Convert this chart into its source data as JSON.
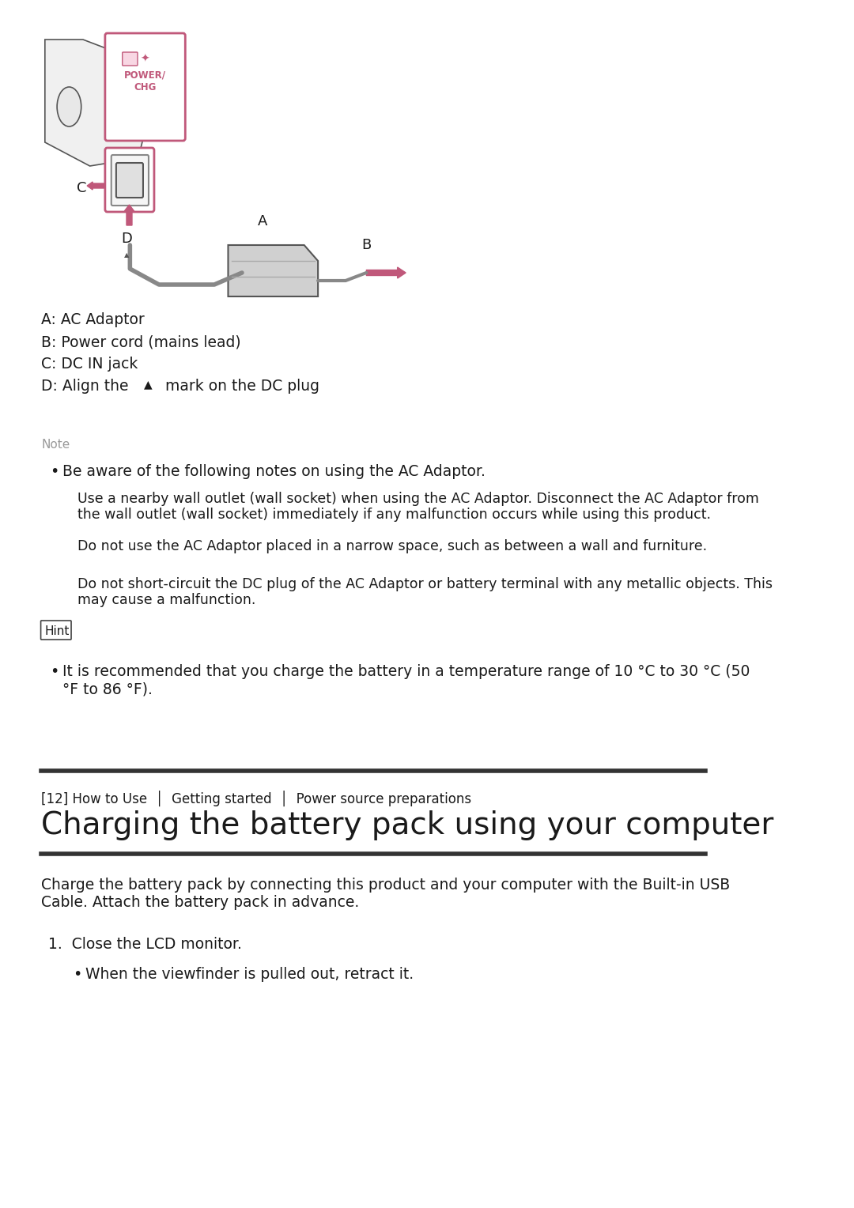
{
  "bg_color": "#ffffff",
  "text_color": "#1a1a1a",
  "note_label_color": "#888888",
  "pink_color": "#c0587a",
  "hint_box_color": "#444444",
  "separator_color": "#333333",
  "labels": {
    "A": "A: AC Adaptor",
    "B": "B: Power cord (mains lead)",
    "C": "C: DC IN jack",
    "D": "D: Align the ▲  mark on the DC plug"
  },
  "note_label": "Note",
  "note_bullet": "Be aware of the following notes on using the AC Adaptor.",
  "note_sub1": "Use a nearby wall outlet (wall socket) when using the AC Adaptor. Disconnect the AC Adaptor from\nthe wall outlet (wall socket) immediately if any malfunction occurs while using this product.",
  "note_sub2": "Do not use the AC Adaptor placed in a narrow space, such as between a wall and furniture.",
  "note_sub3": "Do not short-circuit the DC plug of the AC Adaptor or battery terminal with any metallic objects. This\nmay cause a malfunction.",
  "hint_label": "Hint",
  "hint_bullet": "It is recommended that you charge the battery in a temperature range of 10 °C to 30 °C (50\n°F to 86 °F).",
  "breadcrumb": "[12] How to Use  │  Getting started  │  Power source preparations",
  "page_title": "Charging the battery pack using your computer",
  "intro_text": "Charge the battery pack by connecting this product and your computer with the Built-in USB\nCable. Attach the battery pack in advance.",
  "step1_label": "1.  Close the LCD monitor.",
  "step1_bullet": "When the viewfinder is pulled out, retract it."
}
